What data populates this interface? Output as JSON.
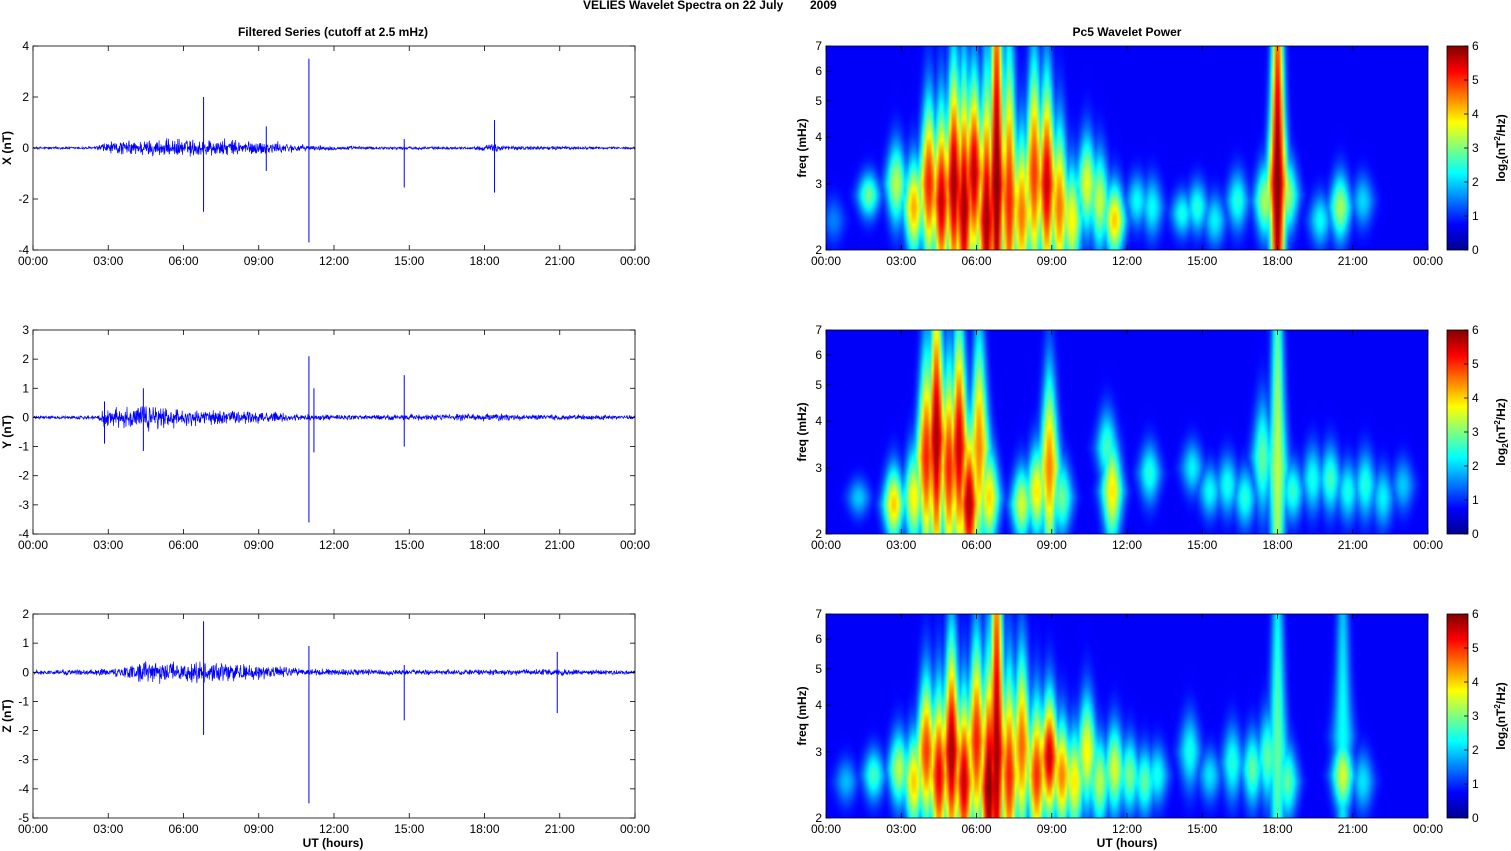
{
  "figure": {
    "title_main": "VELIES Wavelet Spectra on 22 July",
    "title_year": "2009"
  },
  "chart_data": [
    {
      "id": "ts-x",
      "type": "line",
      "title": "Filtered Series (cutoff at 2.5 mHz)",
      "xlabel": "",
      "ylabel": "X (nT)",
      "ylim": [
        -4,
        4
      ],
      "yticks": [
        -4,
        -2,
        0,
        2,
        4
      ],
      "xticks": [
        "00:00",
        "03:00",
        "06:00",
        "09:00",
        "12:00",
        "15:00",
        "18:00",
        "21:00",
        "00:00"
      ],
      "xlim_hours": [
        0,
        24
      ],
      "color": "#0000ff",
      "noise": [
        [
          0,
          0.05
        ],
        [
          2.5,
          0.07
        ],
        [
          2.8,
          0.28
        ],
        [
          5,
          0.4
        ],
        [
          7,
          0.42
        ],
        [
          9.5,
          0.3
        ],
        [
          11,
          0.12
        ],
        [
          13.5,
          0.07
        ],
        [
          17.5,
          0.06
        ],
        [
          18.4,
          0.2
        ],
        [
          19,
          0.1
        ],
        [
          24,
          0.05
        ]
      ],
      "spikes": [
        [
          6.8,
          2.0,
          -2.5
        ],
        [
          9.3,
          0.85,
          -0.9
        ],
        [
          11.0,
          3.5,
          -3.7
        ],
        [
          14.8,
          0.35,
          -1.55
        ],
        [
          18.4,
          1.1,
          -1.75
        ]
      ]
    },
    {
      "id": "ts-y",
      "type": "line",
      "title": "",
      "xlabel": "",
      "ylabel": "Y (nT)",
      "ylim": [
        -4,
        3
      ],
      "yticks": [
        -4,
        -3,
        -2,
        -1,
        0,
        1,
        2,
        3
      ],
      "xticks": [
        "00:00",
        "03:00",
        "06:00",
        "09:00",
        "12:00",
        "15:00",
        "18:00",
        "21:00",
        "00:00"
      ],
      "xlim_hours": [
        0,
        24
      ],
      "color": "#0000ff",
      "noise": [
        [
          0,
          0.06
        ],
        [
          2.6,
          0.08
        ],
        [
          2.8,
          0.35
        ],
        [
          4.5,
          0.5
        ],
        [
          6,
          0.35
        ],
        [
          8.5,
          0.25
        ],
        [
          11,
          0.12
        ],
        [
          14,
          0.1
        ],
        [
          18,
          0.15
        ],
        [
          21,
          0.1
        ],
        [
          24,
          0.09
        ]
      ],
      "spikes": [
        [
          2.85,
          0.55,
          -0.9
        ],
        [
          4.4,
          1.0,
          -1.15
        ],
        [
          11.0,
          2.1,
          -3.6
        ],
        [
          11.2,
          1.0,
          -1.2
        ],
        [
          14.8,
          1.45,
          -1.0
        ]
      ]
    },
    {
      "id": "ts-z",
      "type": "line",
      "title": "",
      "xlabel": "UT (hours)",
      "ylabel": "Z (nT)",
      "ylim": [
        -5,
        2
      ],
      "yticks": [
        -5,
        -4,
        -3,
        -2,
        -1,
        0,
        1,
        2
      ],
      "xticks": [
        "00:00",
        "03:00",
        "06:00",
        "09:00",
        "12:00",
        "15:00",
        "18:00",
        "21:00",
        "00:00"
      ],
      "xlim_hours": [
        0,
        24
      ],
      "color": "#0000ff",
      "noise": [
        [
          0,
          0.08
        ],
        [
          3,
          0.15
        ],
        [
          4.5,
          0.4
        ],
        [
          7,
          0.45
        ],
        [
          9,
          0.3
        ],
        [
          11,
          0.15
        ],
        [
          16,
          0.1
        ],
        [
          21,
          0.12
        ],
        [
          24,
          0.08
        ]
      ],
      "spikes": [
        [
          6.8,
          1.75,
          -2.15
        ],
        [
          11.0,
          0.9,
          -4.5
        ],
        [
          14.8,
          0.25,
          -1.65
        ],
        [
          20.9,
          0.7,
          -1.4
        ]
      ]
    },
    {
      "id": "wp-x",
      "type": "heatmap",
      "title": "Pc5 Wavelet Power",
      "xlabel": "",
      "ylabel": "freq (mHz)",
      "y_scale": "log",
      "ylim": [
        2,
        7
      ],
      "yticks": [
        2,
        3,
        4,
        5,
        6,
        7
      ],
      "xticks": [
        "00:00",
        "03:00",
        "06:00",
        "09:00",
        "12:00",
        "15:00",
        "18:00",
        "21:00",
        "00:00"
      ],
      "xlim_hours": [
        0,
        24
      ],
      "colorbar_label_base": "log",
      "colorbar_label_sub": "2",
      "colorbar_label_mid": "(nT",
      "colorbar_label_sup": "2",
      "colorbar_label_end": "/Hz)",
      "colorbar_ticks": [
        0,
        1,
        2,
        3,
        4,
        5,
        6
      ],
      "colorbar_range": [
        0,
        6
      ],
      "blobs": [
        [
          0.3,
          2.4,
          0.9,
          0.6
        ],
        [
          1.7,
          2.8,
          2.5,
          0.6
        ],
        [
          2.8,
          3.0,
          3.0,
          1.1
        ],
        [
          3.5,
          2.6,
          4.0,
          1.3
        ],
        [
          4.1,
          3.0,
          5.0,
          2.2
        ],
        [
          4.6,
          2.7,
          5.5,
          2.5
        ],
        [
          5.1,
          3.0,
          5.8,
          3.2
        ],
        [
          5.5,
          2.6,
          5.8,
          3.5
        ],
        [
          5.9,
          3.2,
          5.6,
          2.6
        ],
        [
          6.4,
          2.4,
          5.8,
          3.8
        ],
        [
          6.8,
          3.0,
          6.0,
          7.0
        ],
        [
          7.3,
          2.7,
          5.0,
          4.0
        ],
        [
          7.8,
          2.5,
          4.4,
          2.2
        ],
        [
          8.3,
          3.2,
          4.8,
          3.0
        ],
        [
          8.8,
          3.0,
          5.5,
          2.8
        ],
        [
          9.3,
          2.6,
          4.4,
          2.2
        ],
        [
          9.8,
          2.4,
          3.5,
          1.5
        ],
        [
          10.4,
          3.0,
          3.3,
          1.3
        ],
        [
          10.9,
          2.7,
          3.1,
          1.3
        ],
        [
          11.5,
          2.4,
          3.8,
          1.0
        ],
        [
          12.4,
          2.7,
          1.8,
          0.7
        ],
        [
          13.0,
          2.6,
          1.8,
          0.8
        ],
        [
          14.2,
          2.5,
          1.9,
          0.6
        ],
        [
          14.8,
          2.6,
          2.0,
          0.7
        ],
        [
          15.5,
          2.4,
          1.7,
          0.7
        ],
        [
          16.4,
          2.7,
          2.0,
          0.8
        ],
        [
          17.5,
          2.7,
          2.9,
          1.0
        ],
        [
          18.0,
          3.0,
          6.0,
          7.0
        ],
        [
          18.4,
          2.8,
          2.8,
          1.0
        ],
        [
          19.7,
          2.4,
          1.8,
          0.7
        ],
        [
          20.5,
          2.6,
          2.9,
          0.9
        ],
        [
          21.4,
          2.7,
          1.5,
          0.7
        ]
      ]
    },
    {
      "id": "wp-y",
      "type": "heatmap",
      "title": "",
      "xlabel": "",
      "ylabel": "freq (mHz)",
      "y_scale": "log",
      "ylim": [
        2,
        7
      ],
      "yticks": [
        2,
        3,
        4,
        5,
        6,
        7
      ],
      "xticks": [
        "00:00",
        "03:00",
        "06:00",
        "09:00",
        "12:00",
        "15:00",
        "18:00",
        "21:00",
        "00:00"
      ],
      "xlim_hours": [
        0,
        24
      ],
      "colorbar_label_base": "log",
      "colorbar_label_sub": "2",
      "colorbar_label_mid": "(nT",
      "colorbar_label_sup": "2",
      "colorbar_label_end": "/Hz)",
      "colorbar_ticks": [
        0,
        1,
        2,
        3,
        4,
        5,
        6
      ],
      "colorbar_range": [
        0,
        6
      ],
      "blobs": [
        [
          1.3,
          2.5,
          1.4,
          0.5
        ],
        [
          2.7,
          2.4,
          3.8,
          1.0
        ],
        [
          3.5,
          2.5,
          3.5,
          1.3
        ],
        [
          4.0,
          3.2,
          5.0,
          2.8
        ],
        [
          4.4,
          3.6,
          5.8,
          4.0
        ],
        [
          4.9,
          3.0,
          5.0,
          2.8
        ],
        [
          5.3,
          3.4,
          5.5,
          3.3
        ],
        [
          5.7,
          2.4,
          5.7,
          2.2
        ],
        [
          6.1,
          3.4,
          4.3,
          3.0
        ],
        [
          6.5,
          2.5,
          3.7,
          1.3
        ],
        [
          7.8,
          2.4,
          3.2,
          1.0
        ],
        [
          8.4,
          2.6,
          3.6,
          1.2
        ],
        [
          8.9,
          3.0,
          4.3,
          2.5
        ],
        [
          9.4,
          2.5,
          2.5,
          1.0
        ],
        [
          11.4,
          2.6,
          3.6,
          1.4
        ],
        [
          11.2,
          3.4,
          2.2,
          1.0
        ],
        [
          12.9,
          2.9,
          2.0,
          0.8
        ],
        [
          14.6,
          3.0,
          1.7,
          0.7
        ],
        [
          15.3,
          2.6,
          1.8,
          0.7
        ],
        [
          16.0,
          2.7,
          1.9,
          0.8
        ],
        [
          16.7,
          2.5,
          2.0,
          0.8
        ],
        [
          17.4,
          3.2,
          2.4,
          1.5
        ],
        [
          18.0,
          3.0,
          3.0,
          7.0
        ],
        [
          18.6,
          2.6,
          2.1,
          0.8
        ],
        [
          19.4,
          2.8,
          1.9,
          0.9
        ],
        [
          20.1,
          2.8,
          2.2,
          0.9
        ],
        [
          20.8,
          2.6,
          1.9,
          0.8
        ],
        [
          21.5,
          2.7,
          2.0,
          0.9
        ],
        [
          22.2,
          2.5,
          1.7,
          0.8
        ],
        [
          23.0,
          2.7,
          1.4,
          0.7
        ]
      ]
    },
    {
      "id": "wp-z",
      "type": "heatmap",
      "title": "",
      "xlabel": "UT (hours)",
      "ylabel": "freq (mHz)",
      "y_scale": "log",
      "ylim": [
        2,
        7
      ],
      "yticks": [
        2,
        3,
        4,
        5,
        6,
        7
      ],
      "xticks": [
        "00:00",
        "03:00",
        "06:00",
        "09:00",
        "12:00",
        "15:00",
        "18:00",
        "21:00",
        "00:00"
      ],
      "xlim_hours": [
        0,
        24
      ],
      "colorbar_label_base": "log",
      "colorbar_label_sub": "2",
      "colorbar_label_mid": "(nT",
      "colorbar_label_sup": "2",
      "colorbar_label_end": "/Hz)",
      "colorbar_ticks": [
        0,
        1,
        2,
        3,
        4,
        5,
        6
      ],
      "colorbar_range": [
        0,
        6
      ],
      "blobs": [
        [
          0.8,
          2.5,
          1.3,
          0.6
        ],
        [
          1.9,
          2.6,
          2.2,
          0.7
        ],
        [
          2.9,
          2.7,
          3.0,
          1.0
        ],
        [
          3.5,
          2.5,
          3.8,
          1.3
        ],
        [
          4.0,
          3.0,
          4.8,
          2.0
        ],
        [
          4.5,
          2.6,
          5.3,
          2.3
        ],
        [
          5.0,
          3.0,
          5.8,
          3.0
        ],
        [
          5.5,
          2.5,
          5.5,
          2.4
        ],
        [
          6.0,
          3.2,
          5.0,
          2.7
        ],
        [
          6.5,
          2.4,
          6.0,
          3.5
        ],
        [
          6.8,
          3.0,
          5.8,
          7.0
        ],
        [
          7.3,
          2.6,
          5.0,
          2.8
        ],
        [
          7.8,
          3.1,
          4.5,
          2.5
        ],
        [
          8.4,
          2.6,
          4.9,
          2.0
        ],
        [
          8.9,
          2.9,
          5.5,
          1.7
        ],
        [
          9.4,
          2.6,
          4.3,
          1.5
        ],
        [
          9.9,
          2.5,
          3.6,
          1.4
        ],
        [
          10.4,
          3.0,
          3.5,
          1.5
        ],
        [
          10.9,
          2.5,
          3.0,
          1.2
        ],
        [
          11.5,
          2.7,
          3.2,
          1.2
        ],
        [
          12.1,
          2.6,
          2.6,
          1.0
        ],
        [
          12.7,
          2.5,
          2.4,
          0.9
        ],
        [
          13.2,
          2.6,
          1.9,
          0.8
        ],
        [
          14.5,
          3.0,
          1.9,
          1.0
        ],
        [
          15.3,
          2.6,
          1.6,
          0.7
        ],
        [
          16.2,
          2.8,
          2.0,
          1.0
        ],
        [
          17.0,
          2.7,
          2.4,
          1.0
        ],
        [
          17.6,
          2.9,
          2.4,
          1.2
        ],
        [
          18.0,
          3.0,
          2.4,
          6.0
        ],
        [
          18.4,
          2.5,
          2.4,
          1.0
        ],
        [
          20.6,
          2.6,
          3.2,
          1.0
        ],
        [
          20.6,
          3.3,
          1.8,
          6.0
        ],
        [
          21.4,
          2.5,
          1.6,
          0.8
        ]
      ]
    }
  ]
}
